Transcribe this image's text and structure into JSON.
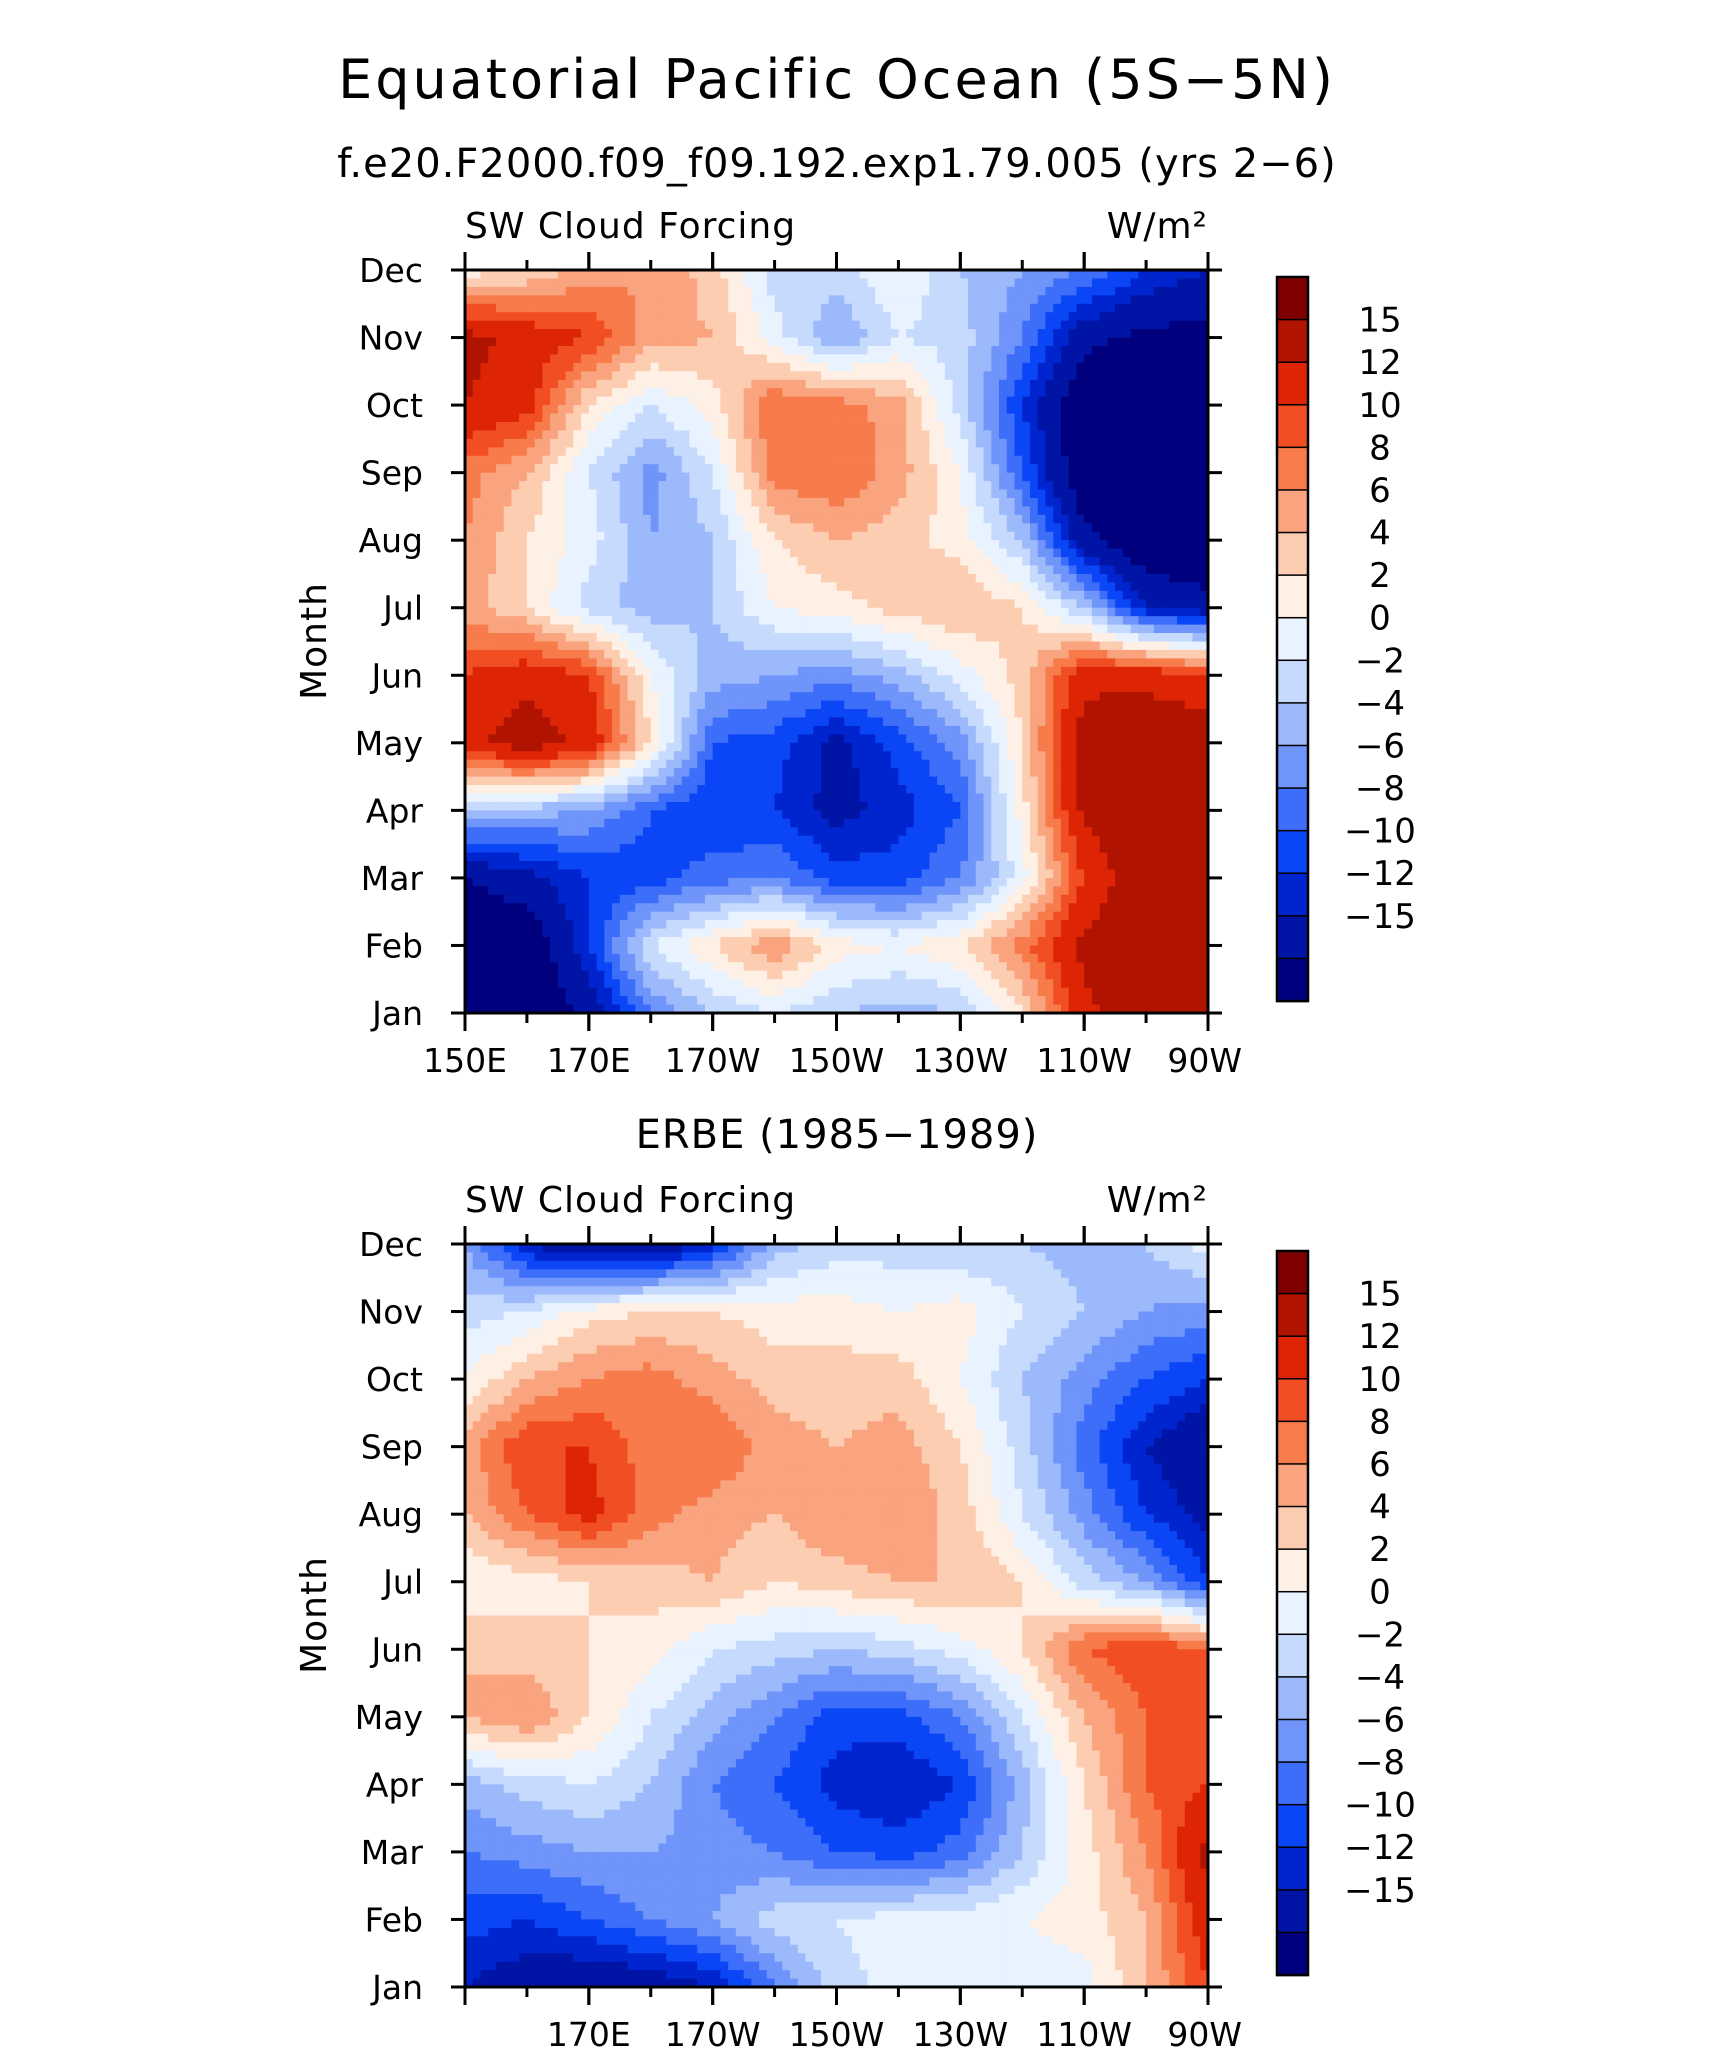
{
  "title": "Equatorial Pacific Ocean (5S−5N)",
  "chart_data": [
    {
      "type": "heatmap",
      "title": "f.e20.F2000.f09_f09.192.exp1.79.005 (yrs 2−6)",
      "left_label": "SW Cloud Forcing",
      "right_label": "W/m²",
      "ylabel": "Month",
      "xlim": [
        150,
        270
      ],
      "x_ticks": [
        {
          "value": 150,
          "label": "150E"
        },
        {
          "value": 170,
          "label": "170E"
        },
        {
          "value": 190,
          "label": "170W"
        },
        {
          "value": 210,
          "label": "150W"
        },
        {
          "value": 230,
          "label": "130W"
        },
        {
          "value": 250,
          "label": "110W"
        },
        {
          "value": 270,
          "label": "90W"
        }
      ],
      "y_categories": [
        "Jan",
        "Feb",
        "Mar",
        "Apr",
        "May",
        "Jun",
        "Jul",
        "Aug",
        "Sep",
        "Oct",
        "Nov",
        "Dec"
      ],
      "levels": [
        -15,
        -12,
        -10,
        -8,
        -6,
        -4,
        -2,
        0,
        2,
        4,
        6,
        8,
        10,
        12,
        15
      ],
      "level_labels": [
        "15",
        "12",
        "10",
        "8",
        "6",
        "4",
        "2",
        "0",
        "−2",
        "−4",
        "−6",
        "−8",
        "−10",
        "−12",
        "−15"
      ],
      "x": [
        150,
        160,
        170,
        180,
        190,
        200,
        210,
        220,
        230,
        240,
        250,
        260,
        270
      ],
      "values": [
        [
          -18,
          -18,
          -14,
          -6,
          -2,
          0,
          -2,
          -3,
          -2,
          4,
          14,
          18,
          18
        ],
        [
          -18,
          -18,
          -10,
          0,
          4,
          8,
          3,
          2,
          4,
          9,
          16,
          18,
          18
        ],
        [
          -15,
          -13,
          -10,
          -9,
          -7,
          -6,
          -9,
          -9,
          -6,
          1,
          12,
          18,
          18
        ],
        [
          -2,
          -3,
          -4,
          -8,
          -10,
          -10,
          -13,
          -11,
          -8,
          3,
          16,
          18,
          18
        ],
        [
          14,
          17,
          14,
          4,
          -8,
          -9,
          -13,
          -9,
          -5,
          4,
          17,
          18,
          18
        ],
        [
          12,
          14,
          12,
          2,
          -3,
          -4,
          -5,
          -3,
          1,
          5,
          14,
          14,
          12
        ],
        [
          7,
          4,
          -1,
          -3,
          -2,
          2,
          3,
          5,
          6,
          4,
          -2,
          -12,
          -14
        ],
        [
          8,
          4,
          1,
          -4,
          -2,
          4,
          6,
          5,
          3,
          -2,
          -14,
          -18,
          -18
        ],
        [
          9,
          6,
          0,
          -5,
          0,
          9,
          10,
          7,
          2,
          -8,
          -18,
          -18,
          -18
        ],
        [
          15,
          13,
          4,
          0,
          3,
          10,
          9,
          7,
          -1,
          -10,
          -18,
          -18,
          -18
        ],
        [
          16,
          14,
          12,
          7,
          6,
          1,
          -4,
          0,
          -1,
          -6,
          -14,
          -16,
          -16
        ],
        [
          3,
          4,
          7,
          8,
          5,
          -1,
          -1,
          2,
          -2,
          -4,
          -6,
          -10,
          -12
        ]
      ]
    },
    {
      "type": "heatmap",
      "title": "ERBE (1985−1989)",
      "left_label": "SW Cloud Forcing",
      "right_label": "W/m²",
      "ylabel": "Month",
      "xlim": [
        150,
        270
      ],
      "x_ticks": [
        {
          "value": 170,
          "label": "170E"
        },
        {
          "value": 190,
          "label": "170W"
        },
        {
          "value": 210,
          "label": "150W"
        },
        {
          "value": 230,
          "label": "130W"
        },
        {
          "value": 250,
          "label": "110W"
        },
        {
          "value": 270,
          "label": "90W"
        }
      ],
      "y_categories": [
        "Jan",
        "Feb",
        "Mar",
        "Apr",
        "May",
        "Jun",
        "Jul",
        "Aug",
        "Sep",
        "Oct",
        "Nov",
        "Dec"
      ],
      "levels": [
        -15,
        -12,
        -10,
        -8,
        -6,
        -4,
        -2,
        0,
        2,
        4,
        6,
        8,
        10,
        12,
        15
      ],
      "level_labels": [
        "15",
        "12",
        "10",
        "8",
        "6",
        "4",
        "2",
        "0",
        "−2",
        "−4",
        "−6",
        "−8",
        "−10",
        "−12",
        "−15"
      ],
      "x": [
        150,
        160,
        170,
        180,
        190,
        200,
        210,
        220,
        230,
        240,
        250,
        260,
        270
      ],
      "values": [
        [
          -12,
          -14,
          -15,
          -14,
          -12,
          -6,
          -1,
          1,
          0,
          1,
          1,
          6,
          12
        ],
        [
          -9,
          -10,
          -8,
          -6,
          -4,
          -1,
          0,
          1,
          1,
          2,
          3,
          6,
          14
        ],
        [
          -6,
          -5,
          -4,
          -4,
          -5,
          -6,
          -8,
          -9,
          -7,
          -2,
          3,
          8,
          16
        ],
        [
          -3,
          -1,
          0,
          -2,
          -6,
          -8,
          -11,
          -12,
          -10,
          -3,
          4,
          10,
          12
        ],
        [
          6,
          8,
          4,
          0,
          -3,
          -6,
          -9,
          -9,
          -6,
          0,
          6,
          10,
          10
        ],
        [
          6,
          5,
          4,
          3,
          0,
          -1,
          -2,
          -1,
          1,
          4,
          10,
          12,
          10
        ],
        [
          2,
          3,
          4,
          5,
          6,
          4,
          5,
          6,
          6,
          4,
          -1,
          -4,
          -10
        ],
        [
          6,
          10,
          13,
          9,
          7,
          6,
          8,
          8,
          5,
          0,
          -5,
          -10,
          -13
        ],
        [
          7,
          12,
          12,
          9,
          10,
          7,
          6,
          7,
          4,
          -1,
          -7,
          -12,
          -15
        ],
        [
          2,
          6,
          8,
          9,
          7,
          5,
          5,
          5,
          2,
          -2,
          -5,
          -8,
          -10
        ],
        [
          -1,
          0,
          3,
          4,
          4,
          3,
          3,
          2,
          3,
          0,
          -2,
          -4,
          -5
        ],
        [
          -4,
          -12,
          -15,
          -15,
          -11,
          -3,
          -1,
          -1,
          -2,
          -2,
          -3,
          -2,
          1
        ]
      ]
    }
  ],
  "colors": [
    "#00007f",
    "#0015a5",
    "#0025cf",
    "#0a46f5",
    "#3d6ef9",
    "#6f95fb",
    "#9cb9fc",
    "#c6dafd",
    "#e8f3ff",
    "#fff0e5",
    "#fdcdb2",
    "#f9a47f",
    "#f77b4b",
    "#f14e24",
    "#dd2506",
    "#b01401",
    "#7f0000"
  ],
  "colorbar_tick_levels": [
    15,
    12,
    10,
    8,
    6,
    4,
    2,
    0,
    -2,
    -4,
    -6,
    -8,
    -10,
    -12,
    -15
  ]
}
